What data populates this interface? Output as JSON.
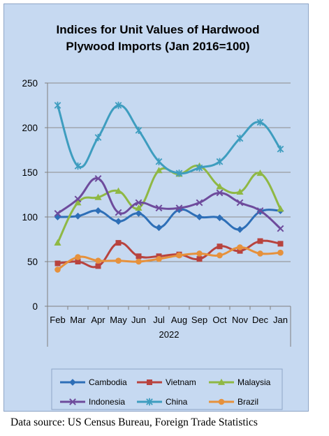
{
  "chart_data": {
    "type": "line",
    "title": [
      "Indices for Unit Values of Hardwood",
      "Plywood Imports (Jan 2016=100)"
    ],
    "categories": [
      "Feb",
      "Mar",
      "Apr",
      "May",
      "Jun",
      "Jul",
      "Aug",
      "Sep",
      "Oct",
      "Nov",
      "Dec",
      "Jan"
    ],
    "xlabel": "2022",
    "ylabel": "",
    "ylim": [
      0,
      250
    ],
    "yticks": [
      "0",
      "50",
      "100",
      "150",
      "200",
      "250"
    ],
    "grid": true,
    "legend_position": "bottom",
    "series": [
      {
        "name": "Cambodia",
        "color": "#2e6fb7",
        "marker": "diamond",
        "values": [
          100,
          101,
          107,
          95,
          104,
          88,
          108,
          100,
          99,
          86,
          106,
          107
        ]
      },
      {
        "name": "Vietnam",
        "color": "#b8433e",
        "marker": "square",
        "values": [
          48,
          50,
          45,
          71,
          56,
          56,
          58,
          53,
          67,
          62,
          73,
          70
        ]
      },
      {
        "name": "Malaysia",
        "color": "#8fb844",
        "marker": "triangle",
        "values": [
          71,
          116,
          122,
          129,
          110,
          152,
          148,
          157,
          134,
          128,
          149,
          109
        ]
      },
      {
        "name": "Indonesia",
        "color": "#6e4b9c",
        "marker": "x",
        "values": [
          104,
          120,
          143,
          105,
          116,
          110,
          110,
          116,
          127,
          116,
          107,
          87
        ]
      },
      {
        "name": "China",
        "color": "#3e9dbf",
        "marker": "star",
        "values": [
          225,
          157,
          189,
          225,
          197,
          162,
          149,
          155,
          162,
          188,
          206,
          176
        ]
      },
      {
        "name": "Brazil",
        "color": "#e6913c",
        "marker": "circle",
        "values": [
          41,
          55,
          51,
          51,
          50,
          53,
          57,
          59,
          57,
          66,
          59,
          60
        ]
      }
    ]
  },
  "source_note": "Data source: US Census Bureau, Foreign Trade Statistics"
}
